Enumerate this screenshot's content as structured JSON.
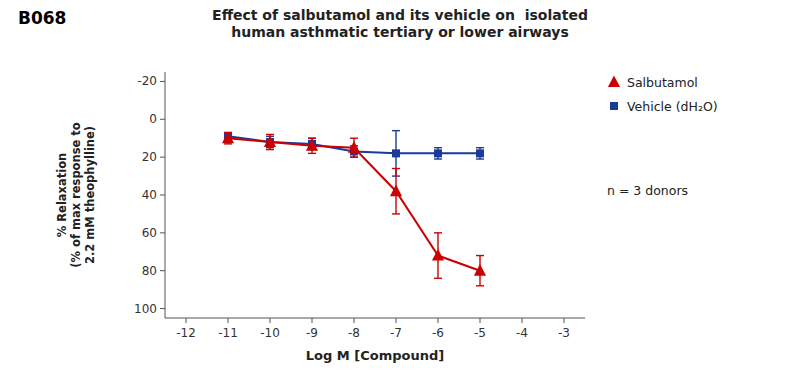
{
  "chart_data": {
    "type": "line",
    "title": "Effect of salbutamol and its vehicle on  isolated\nhuman asthmatic tertiary or lower airways",
    "x_label": "Log M [Compound]",
    "y_label": "% Relaxation\n(% of max response to\n2.2 mM theophylline)",
    "annotations": [
      "B068",
      "n = 3 donors"
    ],
    "x": [
      -11,
      -10,
      -9,
      -8,
      -7,
      -6,
      -5
    ],
    "xlim": [
      -12.5,
      -2.5
    ],
    "ylim": [
      105,
      -25
    ],
    "xticks": [
      -12,
      -11,
      -10,
      -9,
      -8,
      -7,
      -6,
      -5,
      -4,
      -3
    ],
    "yticks": [
      -20,
      0,
      20,
      40,
      60,
      80,
      100
    ],
    "grid": false,
    "legend": "right",
    "series": [
      {
        "name": "Salbutamol",
        "color": "#cc0000",
        "marker": "triangle",
        "line_style": "solid",
        "values": [
          10,
          12,
          14,
          15,
          38,
          72,
          80
        ],
        "errors": [
          3,
          4,
          4,
          5,
          12,
          12,
          8
        ]
      },
      {
        "name": "Vehicle (dH₂O)",
        "color": "#1a3a9c",
        "marker": "square",
        "line_style": "solid",
        "values": [
          9,
          12,
          13,
          17,
          18,
          18,
          18
        ],
        "errors_low": [
          2,
          3,
          3,
          3,
          12,
          3,
          3
        ],
        "errors_high": [
          2,
          3,
          3,
          3,
          12,
          3,
          3
        ]
      }
    ]
  }
}
